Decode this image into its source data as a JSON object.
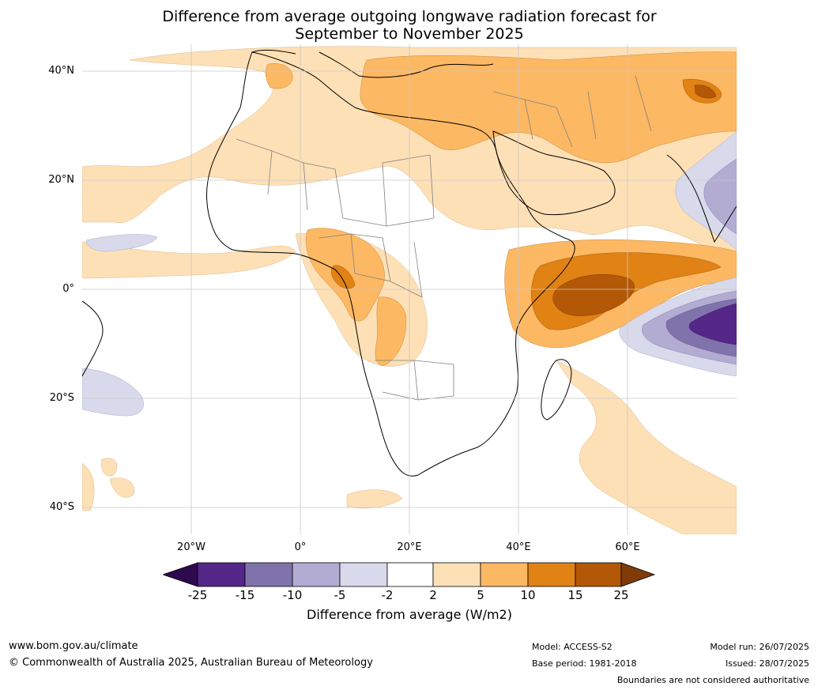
{
  "title": {
    "line1": "Difference from average outgoing longwave radiation forecast for",
    "line2": "September to November 2025"
  },
  "colors": {
    "neg25_below": "#2d0a4e",
    "neg25_15": "#542788",
    "neg15_10": "#8073ac",
    "neg10_5": "#b2abd2",
    "neg5_2": "#d8daeb",
    "neutral": "#ffffff",
    "pos2_5": "#fee0b6",
    "pos5_10": "#fdb863",
    "pos10_15": "#e08214",
    "pos15_25": "#b35806",
    "pos25_above": "#7f3b08",
    "coast": "#000000",
    "border": "#808080",
    "grid": "#c8c8c8"
  },
  "map": {
    "lat_labels": [
      "40°N",
      "20°N",
      "0°",
      "20°S",
      "40°S"
    ],
    "lon_labels": [
      "20°W",
      "0°",
      "20°E",
      "40°E",
      "60°E"
    ]
  },
  "legend": {
    "ticks": [
      "-25",
      "-15",
      "-10",
      "-5",
      "-2",
      "2",
      "5",
      "10",
      "15",
      "25"
    ],
    "label": "Difference from average (W/m2)"
  },
  "footer": {
    "site": "www.bom.gov.au/climate",
    "copyright": "© Commonwealth of Australia 2025, Australian Bureau of Meteorology",
    "model": "Model: ACCESS-S2",
    "base_period": "Base period: 1981-2018",
    "model_run": "Model run: 26/07/2025",
    "issued": "Issued: 28/07/2025",
    "disclaimer": "Boundaries are not considered authoritative"
  }
}
